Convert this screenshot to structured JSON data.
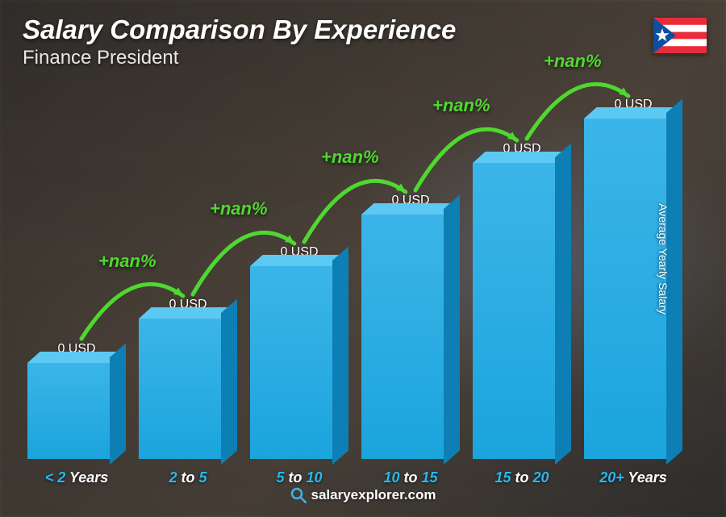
{
  "header": {
    "title": "Salary Comparison By Experience",
    "subtitle": "Finance President"
  },
  "flag": {
    "name": "puerto-rico",
    "stripe_red": "#e92b3a",
    "stripe_white": "#ffffff",
    "triangle_blue": "#0a50a1",
    "star_white": "#ffffff"
  },
  "yaxis_label": "Average Yearly Salary",
  "chart": {
    "type": "bar",
    "bar_face_color": "#1ba4dd",
    "bar_top_color": "#5cc9f2",
    "bar_side_color": "#0e7fb5",
    "value_color": "#ffffff",
    "delta_color": "#4fd82f",
    "arrow_color": "#4fd82f",
    "cat_highlight_color": "#26b8f0",
    "cat_normal_color": "#ffffff",
    "bars": [
      {
        "height_frac": 0.26,
        "value": "0 USD",
        "cat_pre": "< 2",
        "cat_post": " Years",
        "delta": null
      },
      {
        "height_frac": 0.38,
        "value": "0 USD",
        "cat_pre": "2",
        "cat_mid": " to ",
        "cat_pre2": "5",
        "cat_post": "",
        "delta": "+nan%"
      },
      {
        "height_frac": 0.52,
        "value": "0 USD",
        "cat_pre": "5",
        "cat_mid": " to ",
        "cat_pre2": "10",
        "cat_post": "",
        "delta": "+nan%"
      },
      {
        "height_frac": 0.66,
        "value": "0 USD",
        "cat_pre": "10",
        "cat_mid": " to ",
        "cat_pre2": "15",
        "cat_post": "",
        "delta": "+nan%"
      },
      {
        "height_frac": 0.8,
        "value": "0 USD",
        "cat_pre": "15",
        "cat_mid": " to ",
        "cat_pre2": "20",
        "cat_post": "",
        "delta": "+nan%"
      },
      {
        "height_frac": 0.92,
        "value": "0 USD",
        "cat_pre": "20+",
        "cat_post": " Years",
        "delta": "+nan%"
      }
    ]
  },
  "footer": {
    "site": "salaryexplorer.com",
    "icon_color": "#3bb5e8"
  }
}
